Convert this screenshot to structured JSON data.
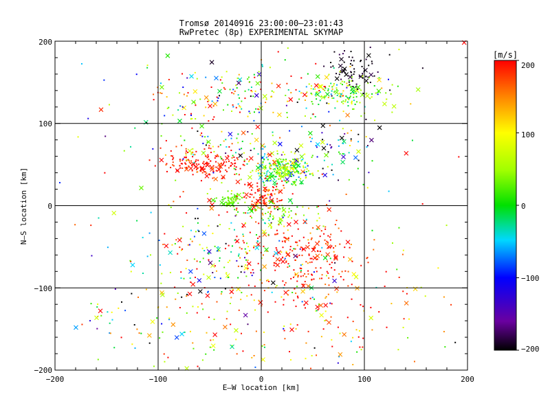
{
  "chart_data": {
    "type": "scatter",
    "title": "Tromsø 20140916 23:00:00–23:01:43",
    "subtitle": "RwPretec (8p) EXPERIMENTAL SKYMAP",
    "xlabel": "E–W location [km]",
    "ylabel": "N–S location [km]",
    "xlim": [
      -200,
      200
    ],
    "ylim": [
      -200,
      200
    ],
    "xticks": [
      "−200",
      "−100",
      "0",
      "100",
      "200"
    ],
    "yticks": [
      "200",
      "100",
      "0",
      "−100",
      "−200"
    ],
    "grid": true,
    "colorbar": {
      "label": "[m/s]",
      "range": [
        -200,
        200
      ],
      "ticks": [
        "200",
        "100",
        "0",
        "−100",
        "−200"
      ],
      "colormap": "rainbow"
    },
    "markers": {
      "small": "dot",
      "large": "x"
    },
    "clusters": [
      {
        "cx": 20,
        "cy": 45,
        "sx": 14,
        "sy": 10,
        "n": 260,
        "v": 20,
        "vs": 60
      },
      {
        "cx": -55,
        "cy": 50,
        "sx": 22,
        "sy": 8,
        "n": 160,
        "v": 195,
        "vs": 20
      },
      {
        "cx": 5,
        "cy": 10,
        "sx": 10,
        "sy": 10,
        "n": 110,
        "v": 190,
        "vs": 25
      },
      {
        "cx": -30,
        "cy": 7,
        "sx": 6,
        "sy": 4,
        "n": 55,
        "v": 30,
        "vs": 8
      },
      {
        "cx": 40,
        "cy": -60,
        "sx": 30,
        "sy": 25,
        "n": 220,
        "v": 190,
        "vs": 30
      },
      {
        "cx": -40,
        "cy": -60,
        "sx": 40,
        "sy": 35,
        "n": 170,
        "v": 60,
        "vs": 160
      },
      {
        "cx": 80,
        "cy": 135,
        "sx": 25,
        "sy": 12,
        "n": 150,
        "v": 40,
        "vs": 60
      },
      {
        "cx": 90,
        "cy": 165,
        "sx": 15,
        "sy": 15,
        "n": 70,
        "v": -195,
        "vs": 10
      },
      {
        "cx": -20,
        "cy": 135,
        "sx": 50,
        "sy": 20,
        "n": 160,
        "v": 70,
        "vs": 130
      },
      {
        "cx": -40,
        "cy": 70,
        "sx": 30,
        "sy": 10,
        "n": 70,
        "v": 60,
        "vs": 110
      },
      {
        "cx": 70,
        "cy": 70,
        "sx": 20,
        "sy": 20,
        "n": 60,
        "v": -80,
        "vs": 120
      },
      {
        "cx": 20,
        "cy": -10,
        "sx": 15,
        "sy": 8,
        "n": 60,
        "v": 40,
        "vs": 40
      },
      {
        "cx": 60,
        "cy": -140,
        "sx": 60,
        "sy": 40,
        "n": 120,
        "v": 150,
        "vs": 80
      },
      {
        "cx": -80,
        "cy": -150,
        "sx": 50,
        "sy": 40,
        "n": 90,
        "v": 70,
        "vs": 120
      },
      {
        "cx": 0,
        "cy": 0,
        "sx": 110,
        "sy": 110,
        "n": 260,
        "v": 60,
        "vs": 150
      }
    ]
  }
}
